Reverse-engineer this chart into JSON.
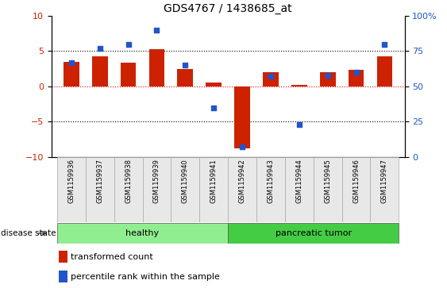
{
  "title": "GDS4767 / 1438685_at",
  "samples": [
    "GSM1159936",
    "GSM1159937",
    "GSM1159938",
    "GSM1159939",
    "GSM1159940",
    "GSM1159941",
    "GSM1159942",
    "GSM1159943",
    "GSM1159944",
    "GSM1159945",
    "GSM1159946",
    "GSM1159947"
  ],
  "transformed_count": [
    3.5,
    4.3,
    3.4,
    5.3,
    2.5,
    0.5,
    -8.8,
    2.0,
    0.2,
    2.0,
    2.3,
    4.3
  ],
  "percentile_rank": [
    67,
    77,
    80,
    90,
    65,
    35,
    7,
    57,
    23,
    58,
    60,
    80
  ],
  "bar_color": "#cc2200",
  "dot_color": "#2255cc",
  "ylim_left": [
    -10,
    10
  ],
  "ylim_right": [
    0,
    100
  ],
  "yticks_left": [
    -10,
    -5,
    0,
    5,
    10
  ],
  "yticks_right": [
    0,
    25,
    50,
    75,
    100
  ],
  "ytick_labels_right": [
    "0",
    "25",
    "50",
    "75",
    "100%"
  ],
  "healthy_label": "healthy",
  "tumor_label": "pancreatic tumor",
  "healthy_color": "#90ee90",
  "tumor_color": "#44cc44",
  "disease_state_label": "disease state",
  "legend_bar_label": "transformed count",
  "legend_dot_label": "percentile rank within the sample",
  "bar_width": 0.55,
  "title_fontsize": 10,
  "tick_fontsize": 8,
  "sample_fontsize": 6,
  "healthy_count": 6,
  "bg_color": "#e8e8e8"
}
